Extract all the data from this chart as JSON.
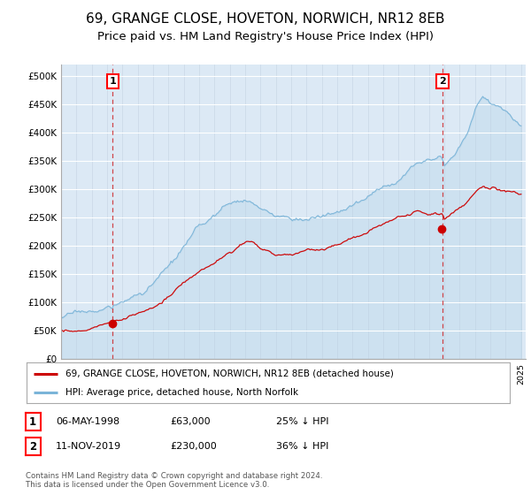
{
  "title": "69, GRANGE CLOSE, HOVETON, NORWICH, NR12 8EB",
  "subtitle": "Price paid vs. HM Land Registry's House Price Index (HPI)",
  "title_fontsize": 11,
  "subtitle_fontsize": 9.5,
  "ylim": [
    0,
    520000
  ],
  "yticks": [
    0,
    50000,
    100000,
    150000,
    200000,
    250000,
    300000,
    350000,
    400000,
    450000,
    500000
  ],
  "ytick_labels": [
    "£0",
    "£50K",
    "£100K",
    "£150K",
    "£200K",
    "£250K",
    "£300K",
    "£350K",
    "£400K",
    "£450K",
    "£500K"
  ],
  "background_color": "#dce9f5",
  "hpi_color": "#7ab4d8",
  "price_color": "#cc0000",
  "dashed_line_color": "#cc0000",
  "marker1_date": 1998.37,
  "marker1_price": 63000,
  "marker2_date": 2019.87,
  "marker2_price": 230000,
  "legend_label1": "69, GRANGE CLOSE, HOVETON, NORWICH, NR12 8EB (detached house)",
  "legend_label2": "HPI: Average price, detached house, North Norfolk",
  "annotation1_date": "06-MAY-1998",
  "annotation1_price": "£63,000",
  "annotation1_hpi": "25% ↓ HPI",
  "annotation2_date": "11-NOV-2019",
  "annotation2_price": "£230,000",
  "annotation2_hpi": "36% ↓ HPI",
  "copyright_text": "Contains HM Land Registry data © Crown copyright and database right 2024.\nThis data is licensed under the Open Government Licence v3.0."
}
